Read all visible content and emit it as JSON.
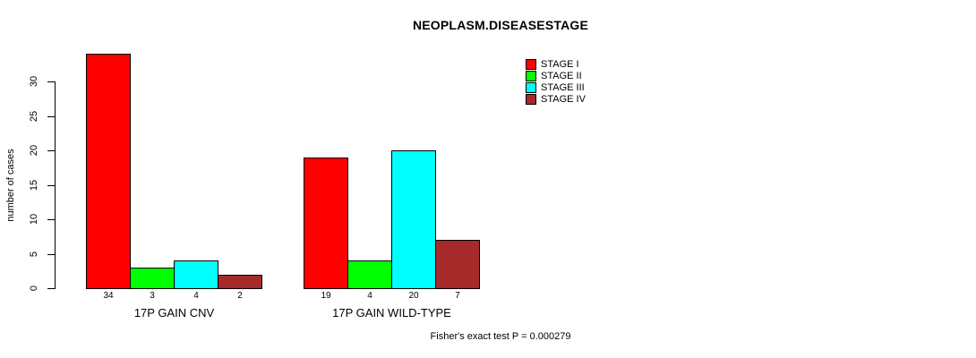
{
  "chart_data": {
    "type": "bar",
    "title": "NEOPLASM.DISEASESTAGE",
    "ylabel": "number of cases",
    "xlabel": "",
    "ylim": [
      0,
      30
    ],
    "yticks": [
      0,
      5,
      10,
      15,
      20,
      25,
      30
    ],
    "grid": false,
    "legend_position": "top-right",
    "bar_value_labels_shown": true,
    "categories": [
      "17P GAIN CNV",
      "17P GAIN WILD-TYPE"
    ],
    "series": [
      {
        "name": "STAGE I",
        "color": "#ff0000",
        "values": [
          34,
          19
        ]
      },
      {
        "name": "STAGE II",
        "color": "#00ff00",
        "values": [
          3,
          4
        ]
      },
      {
        "name": "STAGE III",
        "color": "#00ffff",
        "values": [
          4,
          20
        ]
      },
      {
        "name": "STAGE IV",
        "color": "#a52a2a",
        "values": [
          2,
          7
        ]
      }
    ],
    "footnote": "Fisher's exact test P = 0.000279"
  }
}
